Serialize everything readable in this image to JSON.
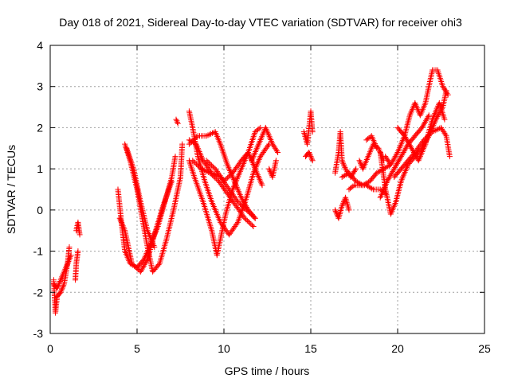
{
  "chart_data": {
    "type": "scatter",
    "title": "Day 018 of 2021, Sidereal Day-to-day VTEC variation (SDTVAR) for receiver ohi3",
    "xlabel": "GPS time / hours",
    "ylabel": "SDTVAR / TECUs",
    "xlim": [
      0,
      25
    ],
    "ylim": [
      -3,
      4
    ],
    "xticks": [
      "0",
      "5",
      "10",
      "15",
      "20",
      "25"
    ],
    "yticks": [
      "-3",
      "-2",
      "-1",
      "0",
      "1",
      "2",
      "3",
      "4"
    ],
    "grid": true,
    "marker": "+",
    "colors": {
      "series": "#ff0000",
      "grid": "#a0a0a0",
      "axis": "#000000"
    },
    "series": [
      {
        "name": "SDTVAR",
        "segments": [
          [
            [
              0.2,
              -1.7
            ],
            [
              0.3,
              -2.5
            ],
            [
              0.4,
              -2.1
            ],
            [
              0.6,
              -2.0
            ],
            [
              0.8,
              -1.8
            ],
            [
              1.0,
              -1.3
            ],
            [
              1.1,
              -0.9
            ]
          ],
          [
            [
              0.2,
              -1.8
            ],
            [
              0.4,
              -1.9
            ],
            [
              0.6,
              -1.7
            ],
            [
              0.9,
              -1.4
            ],
            [
              1.2,
              -1.1
            ]
          ],
          [
            [
              1.45,
              -1.7
            ],
            [
              1.5,
              -1.3
            ],
            [
              1.6,
              -1.0
            ]
          ],
          [
            [
              1.5,
              -0.5
            ],
            [
              1.6,
              -0.3
            ],
            [
              1.7,
              -0.6
            ]
          ],
          [
            [
              3.9,
              0.5
            ],
            [
              4.1,
              -0.3
            ],
            [
              4.3,
              -1.0
            ],
            [
              4.6,
              -1.3
            ],
            [
              5.0,
              -1.4
            ],
            [
              5.4,
              -1.2
            ],
            [
              5.8,
              -0.8
            ],
            [
              6.2,
              -0.4
            ],
            [
              6.6,
              0.2
            ],
            [
              7.0,
              0.8
            ],
            [
              7.2,
              1.3
            ]
          ],
          [
            [
              4.3,
              1.6
            ],
            [
              4.6,
              1.2
            ],
            [
              5.0,
              0.5
            ],
            [
              5.3,
              -0.2
            ],
            [
              5.6,
              -0.9
            ],
            [
              5.9,
              -1.5
            ],
            [
              6.3,
              -1.3
            ],
            [
              6.7,
              -0.7
            ],
            [
              7.1,
              0.0
            ],
            [
              7.5,
              0.8
            ],
            [
              7.6,
              1.6
            ]
          ],
          [
            [
              4.0,
              -0.2
            ],
            [
              4.3,
              -0.5
            ],
            [
              4.7,
              -1.3
            ],
            [
              5.2,
              -1.5
            ],
            [
              5.6,
              -1.2
            ],
            [
              6.0,
              -0.6
            ],
            [
              6.5,
              0.1
            ],
            [
              7.0,
              0.7
            ]
          ],
          [
            [
              4.4,
              1.5
            ],
            [
              4.8,
              1.0
            ],
            [
              5.2,
              0.2
            ],
            [
              5.6,
              -0.5
            ],
            [
              6.0,
              -0.9
            ]
          ],
          [
            [
              7.25,
              2.2
            ],
            [
              7.35,
              2.1
            ]
          ],
          [
            [
              8.0,
              1.2
            ],
            [
              8.3,
              0.8
            ],
            [
              8.8,
              0.2
            ],
            [
              9.3,
              -0.5
            ],
            [
              9.6,
              -1.1
            ],
            [
              9.8,
              -0.7
            ],
            [
              10.1,
              -0.1
            ],
            [
              10.5,
              0.5
            ],
            [
              10.9,
              0.9
            ],
            [
              11.4,
              1.4
            ],
            [
              11.8,
              1.9
            ],
            [
              12.1,
              2.0
            ]
          ],
          [
            [
              8.0,
              2.4
            ],
            [
              8.2,
              2.0
            ],
            [
              8.5,
              1.3
            ],
            [
              8.9,
              0.7
            ],
            [
              9.3,
              0.2
            ],
            [
              9.8,
              -0.3
            ],
            [
              10.3,
              -0.6
            ],
            [
              10.8,
              -0.3
            ],
            [
              11.3,
              0.3
            ],
            [
              11.7,
              0.9
            ],
            [
              12.1,
              1.3
            ],
            [
              12.6,
              1.6
            ]
          ],
          [
            [
              8.0,
              1.7
            ],
            [
              8.4,
              1.6
            ],
            [
              8.8,
              1.2
            ],
            [
              9.3,
              0.9
            ],
            [
              9.8,
              0.8
            ],
            [
              10.3,
              0.5
            ],
            [
              10.8,
              0.2
            ],
            [
              11.3,
              0.0
            ],
            [
              11.8,
              -0.2
            ]
          ],
          [
            [
              8.2,
              1.2
            ],
            [
              8.7,
              1.0
            ],
            [
              9.2,
              0.9
            ],
            [
              9.7,
              0.7
            ],
            [
              10.2,
              0.4
            ],
            [
              10.7,
              0.1
            ],
            [
              11.2,
              -0.2
            ],
            [
              11.7,
              -0.4
            ]
          ],
          [
            [
              8.0,
              1.6
            ],
            [
              8.5,
              1.8
            ],
            [
              9.0,
              1.8
            ],
            [
              9.5,
              1.9
            ],
            [
              9.8,
              1.6
            ],
            [
              10.2,
              1.1
            ],
            [
              10.6,
              0.7
            ],
            [
              11.0,
              0.3
            ],
            [
              11.4,
              0.0
            ],
            [
              11.8,
              -0.2
            ]
          ],
          [
            [
              9.0,
              1.2
            ],
            [
              9.5,
              1.0
            ],
            [
              10.0,
              0.7
            ],
            [
              10.5,
              0.9
            ],
            [
              11.0,
              1.2
            ],
            [
              11.4,
              1.4
            ],
            [
              11.8,
              1.0
            ],
            [
              12.2,
              0.6
            ]
          ],
          [
            [
              11.6,
              1.2
            ],
            [
              12.0,
              1.6
            ],
            [
              12.4,
              2.0
            ],
            [
              12.8,
              1.6
            ],
            [
              13.1,
              1.4
            ]
          ],
          [
            [
              12.6,
              1.0
            ],
            [
              12.8,
              0.8
            ],
            [
              13.0,
              1.2
            ]
          ],
          [
            [
              14.6,
              1.9
            ],
            [
              14.8,
              1.6
            ],
            [
              15.0,
              2.4
            ],
            [
              15.1,
              1.9
            ]
          ],
          [
            [
              14.7,
              1.3
            ],
            [
              14.9,
              1.4
            ],
            [
              15.1,
              1.2
            ]
          ],
          [
            [
              16.4,
              0.9
            ],
            [
              16.6,
              1.4
            ],
            [
              16.7,
              1.9
            ],
            [
              16.8,
              1.2
            ],
            [
              17.0,
              1.0
            ],
            [
              17.3,
              0.8
            ],
            [
              17.6,
              1.0
            ]
          ],
          [
            [
              16.4,
              0.0
            ],
            [
              16.6,
              -0.2
            ],
            [
              16.8,
              0.1
            ],
            [
              17.0,
              0.3
            ],
            [
              17.2,
              0.0
            ]
          ],
          [
            [
              17.2,
              0.5
            ],
            [
              17.5,
              0.6
            ],
            [
              17.8,
              0.6
            ],
            [
              18.2,
              0.6
            ],
            [
              18.6,
              0.5
            ],
            [
              19.0,
              0.5
            ],
            [
              19.3,
              0.4
            ]
          ],
          [
            [
              16.8,
              0.8
            ],
            [
              17.2,
              0.9
            ],
            [
              17.6,
              0.7
            ],
            [
              18.0,
              0.6
            ],
            [
              18.4,
              0.7
            ],
            [
              18.8,
              0.9
            ],
            [
              19.2,
              1.0
            ],
            [
              19.6,
              1.1
            ]
          ],
          [
            [
              17.8,
              1.2
            ],
            [
              18.0,
              1.0
            ],
            [
              18.3,
              1.3
            ],
            [
              18.6,
              1.6
            ],
            [
              18.9,
              1.5
            ],
            [
              19.2,
              1.2
            ]
          ],
          [
            [
              18.2,
              1.7
            ],
            [
              18.5,
              1.8
            ],
            [
              18.8,
              1.5
            ]
          ],
          [
            [
              19.0,
              1.4
            ],
            [
              19.3,
              0.5
            ],
            [
              19.6,
              -0.1
            ],
            [
              19.9,
              0.2
            ],
            [
              20.2,
              0.7
            ],
            [
              20.6,
              1.1
            ],
            [
              21.0,
              1.3
            ],
            [
              21.4,
              1.5
            ],
            [
              21.8,
              1.8
            ],
            [
              22.2,
              2.2
            ],
            [
              22.6,
              2.5
            ],
            [
              22.8,
              2.9
            ]
          ],
          [
            [
              19.0,
              0.3
            ],
            [
              19.4,
              0.7
            ],
            [
              19.8,
              1.0
            ],
            [
              20.2,
              1.3
            ],
            [
              20.6,
              1.6
            ],
            [
              21.0,
              1.8
            ],
            [
              21.4,
              2.0
            ],
            [
              21.8,
              2.3
            ]
          ],
          [
            [
              19.3,
              1.3
            ],
            [
              19.6,
              1.1
            ],
            [
              20.0,
              1.4
            ],
            [
              20.4,
              1.8
            ],
            [
              20.7,
              2.3
            ],
            [
              21.0,
              2.6
            ],
            [
              21.3,
              2.3
            ],
            [
              21.6,
              2.6
            ],
            [
              22.0,
              3.4
            ],
            [
              22.3,
              3.4
            ],
            [
              22.6,
              3.0
            ],
            [
              22.9,
              2.8
            ]
          ],
          [
            [
              19.8,
              0.8
            ],
            [
              20.2,
              1.0
            ],
            [
              20.6,
              1.2
            ],
            [
              21.0,
              1.4
            ],
            [
              21.5,
              1.7
            ],
            [
              22.0,
              1.9
            ],
            [
              22.5,
              2.0
            ],
            [
              22.8,
              1.8
            ],
            [
              23.0,
              1.3
            ]
          ],
          [
            [
              20.0,
              2.0
            ],
            [
              20.4,
              1.8
            ],
            [
              20.8,
              1.5
            ],
            [
              21.2,
              1.2
            ],
            [
              21.6,
              1.6
            ],
            [
              22.0,
              2.2
            ],
            [
              22.4,
              2.6
            ],
            [
              22.7,
              2.2
            ]
          ]
        ]
      }
    ]
  }
}
